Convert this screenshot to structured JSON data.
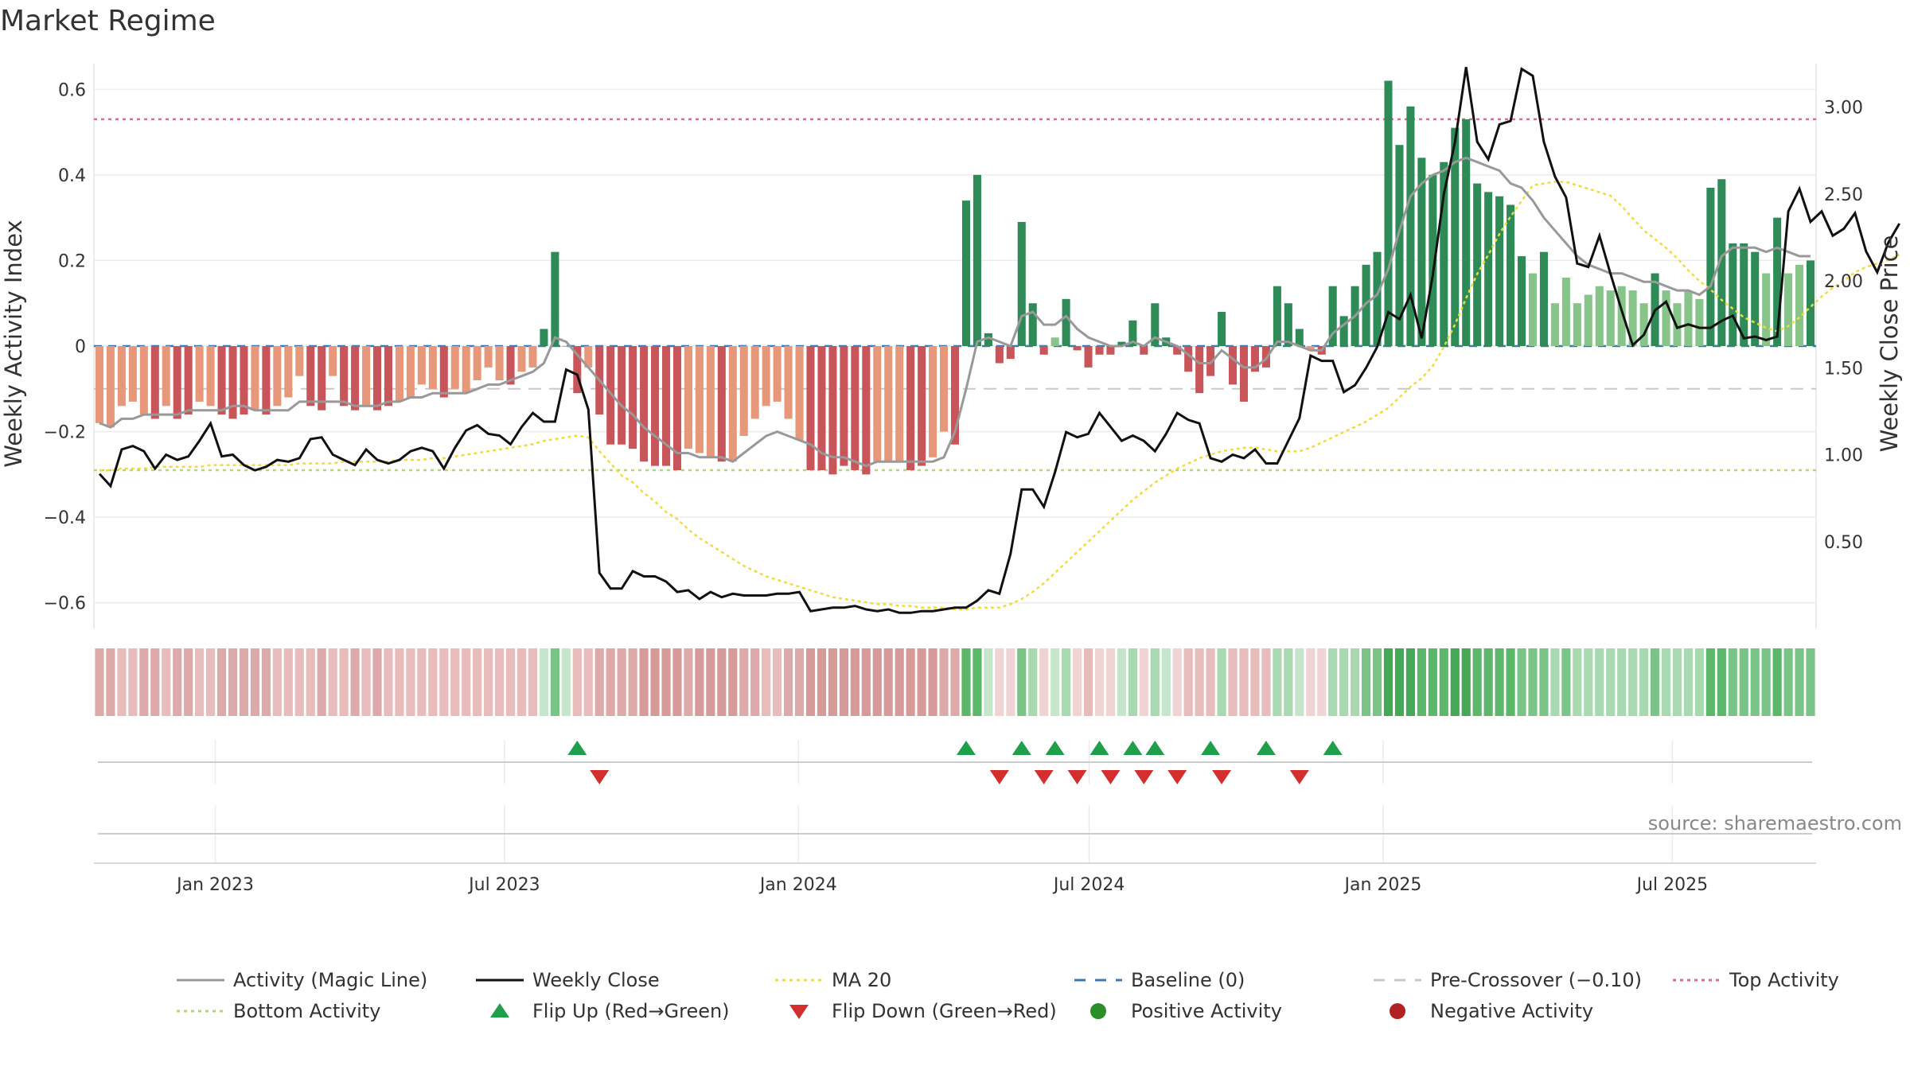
{
  "chart_data": {
    "type": "bar",
    "title": "Market Regime",
    "ylabel": "Weekly Activity Index",
    "y2label": "Weekly Close Price",
    "ylim": [
      -0.66,
      0.66
    ],
    "y2lim": [
      0.0,
      3.25
    ],
    "x_start": "2022-10-17",
    "x_end": "2025-09-29",
    "y_ticks": [
      {
        "v": 0.6,
        "label": "0.6"
      },
      {
        "v": 0.4,
        "label": "0.4"
      },
      {
        "v": 0.2,
        "label": "0.2"
      },
      {
        "v": 0.0,
        "label": "0"
      },
      {
        "v": -0.2,
        "label": "−0.2"
      },
      {
        "v": -0.4,
        "label": "−0.4"
      },
      {
        "v": -0.6,
        "label": "−0.6"
      }
    ],
    "y2_ticks": [
      {
        "v": 3.0,
        "label": "3.00"
      },
      {
        "v": 2.5,
        "label": "2.50"
      },
      {
        "v": 2.0,
        "label": "2.00"
      },
      {
        "v": 1.5,
        "label": "1.50"
      },
      {
        "v": 1.0,
        "label": "1.00"
      },
      {
        "v": 0.5,
        "label": "0.50"
      }
    ],
    "x_ticks": [
      {
        "date": "2023-01-01",
        "label": "Jan 2023"
      },
      {
        "date": "2023-07-01",
        "label": "Jul 2023"
      },
      {
        "date": "2024-01-01",
        "label": "Jan 2024"
      },
      {
        "date": "2024-07-01",
        "label": "Jul 2024"
      },
      {
        "date": "2025-01-01",
        "label": "Jan 2025"
      },
      {
        "date": "2025-07-01",
        "label": "Jul 2025"
      }
    ],
    "reference_lines": {
      "top_activity": 0.53,
      "bottom_activity": -0.29,
      "baseline": 0,
      "pre_crossover": -0.1
    },
    "activity": [
      -0.18,
      -0.19,
      -0.14,
      -0.13,
      -0.16,
      -0.17,
      -0.14,
      -0.17,
      -0.16,
      -0.13,
      -0.14,
      -0.16,
      -0.17,
      -0.16,
      -0.15,
      -0.16,
      -0.14,
      -0.12,
      -0.07,
      -0.14,
      -0.15,
      -0.07,
      -0.14,
      -0.15,
      -0.14,
      -0.15,
      -0.14,
      -0.13,
      -0.12,
      -0.09,
      -0.1,
      -0.12,
      -0.1,
      -0.11,
      -0.08,
      -0.05,
      -0.08,
      -0.09,
      -0.06,
      -0.05,
      0.04,
      0.22,
      0.0,
      -0.11,
      -0.05,
      -0.16,
      -0.23,
      -0.23,
      -0.24,
      -0.27,
      -0.28,
      -0.28,
      -0.29,
      -0.24,
      -0.25,
      -0.26,
      -0.27,
      -0.27,
      -0.21,
      -0.17,
      -0.14,
      -0.13,
      -0.17,
      -0.22,
      -0.29,
      -0.29,
      -0.3,
      -0.28,
      -0.29,
      -0.3,
      -0.27,
      -0.27,
      -0.27,
      -0.29,
      -0.28,
      -0.26,
      -0.2,
      -0.23,
      0.34,
      0.4,
      0.03,
      -0.04,
      -0.03,
      0.29,
      0.1,
      -0.02,
      0.02,
      0.11,
      -0.01,
      -0.05,
      -0.02,
      -0.02,
      0.01,
      0.06,
      -0.02,
      0.1,
      0.02,
      -0.02,
      -0.06,
      -0.11,
      -0.07,
      0.08,
      -0.09,
      -0.13,
      -0.06,
      -0.05,
      0.14,
      0.1,
      0.04,
      -0.01,
      -0.02,
      0.14,
      0.07,
      0.14,
      0.19,
      0.22,
      0.62,
      0.47,
      0.56,
      0.44,
      0.4,
      0.43,
      0.51,
      0.53,
      0.38,
      0.36,
      0.35,
      0.33,
      0.21,
      0.17,
      0.22,
      0.1,
      0.16,
      0.1,
      0.12,
      0.14,
      0.13,
      0.14,
      0.13,
      0.1,
      0.17,
      0.13,
      0.1,
      0.13,
      0.11,
      0.37,
      0.39,
      0.24,
      0.24,
      0.22,
      0.17,
      0.3,
      0.17,
      0.19,
      0.2
    ],
    "magic_line": [
      -0.18,
      -0.19,
      -0.17,
      -0.17,
      -0.16,
      -0.16,
      -0.16,
      -0.16,
      -0.15,
      -0.15,
      -0.15,
      -0.15,
      -0.14,
      -0.14,
      -0.15,
      -0.15,
      -0.15,
      -0.15,
      -0.13,
      -0.13,
      -0.13,
      -0.13,
      -0.13,
      -0.14,
      -0.14,
      -0.14,
      -0.13,
      -0.13,
      -0.12,
      -0.12,
      -0.11,
      -0.11,
      -0.11,
      -0.11,
      -0.1,
      -0.09,
      -0.09,
      -0.08,
      -0.07,
      -0.06,
      -0.04,
      0.02,
      0.01,
      -0.02,
      -0.05,
      -0.08,
      -0.11,
      -0.14,
      -0.16,
      -0.19,
      -0.21,
      -0.23,
      -0.25,
      -0.25,
      -0.26,
      -0.26,
      -0.26,
      -0.27,
      -0.25,
      -0.23,
      -0.21,
      -0.2,
      -0.21,
      -0.22,
      -0.23,
      -0.25,
      -0.26,
      -0.26,
      -0.27,
      -0.28,
      -0.27,
      -0.27,
      -0.27,
      -0.27,
      -0.27,
      -0.27,
      -0.26,
      -0.2,
      -0.1,
      0.01,
      0.02,
      0.01,
      0.0,
      0.07,
      0.08,
      0.05,
      0.05,
      0.07,
      0.04,
      0.02,
      0.01,
      0.0,
      0.0,
      0.01,
      0.0,
      0.02,
      0.01,
      0.0,
      -0.02,
      -0.04,
      -0.04,
      -0.01,
      -0.03,
      -0.05,
      -0.05,
      -0.03,
      0.01,
      0.01,
      0.0,
      -0.01,
      -0.01,
      0.03,
      0.05,
      0.07,
      0.1,
      0.12,
      0.18,
      0.27,
      0.35,
      0.38,
      0.4,
      0.41,
      0.43,
      0.44,
      0.43,
      0.42,
      0.41,
      0.38,
      0.37,
      0.34,
      0.3,
      0.27,
      0.24,
      0.21,
      0.19,
      0.18,
      0.17,
      0.17,
      0.16,
      0.15,
      0.15,
      0.14,
      0.13,
      0.13,
      0.12,
      0.14,
      0.21,
      0.23,
      0.23,
      0.23,
      0.22,
      0.23,
      0.22,
      0.21,
      0.21
    ],
    "weekly_close": [
      0.89,
      0.82,
      1.03,
      1.05,
      1.02,
      0.92,
      1.0,
      0.97,
      0.99,
      1.08,
      1.18,
      0.99,
      1.0,
      0.94,
      0.91,
      0.93,
      0.97,
      0.96,
      0.98,
      1.09,
      1.1,
      1.0,
      0.97,
      0.94,
      1.03,
      0.97,
      0.95,
      0.97,
      1.02,
      1.04,
      1.02,
      0.92,
      1.04,
      1.14,
      1.17,
      1.12,
      1.11,
      1.06,
      1.16,
      1.24,
      1.19,
      1.19,
      1.49,
      1.46,
      1.26,
      0.32,
      0.23,
      0.23,
      0.33,
      0.3,
      0.3,
      0.27,
      0.21,
      0.22,
      0.17,
      0.21,
      0.18,
      0.2,
      0.19,
      0.19,
      0.19,
      0.2,
      0.2,
      0.21,
      0.1,
      0.11,
      0.12,
      0.12,
      0.13,
      0.11,
      0.1,
      0.11,
      0.09,
      0.09,
      0.1,
      0.1,
      0.11,
      0.12,
      0.12,
      0.16,
      0.22,
      0.2,
      0.43,
      0.8,
      0.8,
      0.7,
      0.9,
      1.13,
      1.1,
      1.12,
      1.24,
      1.16,
      1.08,
      1.11,
      1.08,
      1.02,
      1.12,
      1.24,
      1.2,
      1.18,
      0.98,
      0.96,
      1.0,
      0.98,
      1.03,
      0.95,
      0.95,
      1.08,
      1.21,
      1.57,
      1.54,
      1.54,
      1.36,
      1.4,
      1.5,
      1.62,
      1.82,
      1.78,
      1.92,
      1.67,
      2.03,
      2.5,
      2.8,
      3.23,
      2.8,
      2.7,
      2.9,
      2.92,
      3.22,
      3.18,
      2.8,
      2.6,
      2.48,
      2.1,
      2.08,
      2.26,
      2.04,
      1.83,
      1.63,
      1.69,
      1.83,
      1.88,
      1.73,
      1.75,
      1.73,
      1.73,
      1.77,
      1.8,
      1.67,
      1.68,
      1.66,
      1.68,
      2.4,
      2.53,
      2.34,
      2.4,
      2.26,
      2.3,
      2.39,
      2.17,
      2.05,
      2.22,
      2.33
    ],
    "ma20": [
      0.91,
      0.91,
      0.92,
      0.92,
      0.92,
      0.93,
      0.93,
      0.93,
      0.93,
      0.93,
      0.94,
      0.94,
      0.94,
      0.94,
      0.94,
      0.94,
      0.94,
      0.94,
      0.95,
      0.95,
      0.95,
      0.95,
      0.96,
      0.96,
      0.96,
      0.96,
      0.96,
      0.97,
      0.97,
      0.97,
      0.98,
      0.98,
      0.99,
      1.0,
      1.01,
      1.02,
      1.03,
      1.04,
      1.05,
      1.06,
      1.08,
      1.09,
      1.1,
      1.11,
      1.1,
      1.02,
      0.95,
      0.88,
      0.84,
      0.78,
      0.73,
      0.67,
      0.63,
      0.57,
      0.52,
      0.48,
      0.44,
      0.4,
      0.36,
      0.33,
      0.3,
      0.28,
      0.26,
      0.24,
      0.22,
      0.2,
      0.18,
      0.17,
      0.16,
      0.15,
      0.14,
      0.14,
      0.13,
      0.13,
      0.12,
      0.12,
      0.12,
      0.11,
      0.11,
      0.12,
      0.12,
      0.12,
      0.14,
      0.17,
      0.21,
      0.26,
      0.32,
      0.38,
      0.44,
      0.5,
      0.56,
      0.62,
      0.68,
      0.74,
      0.79,
      0.84,
      0.88,
      0.92,
      0.95,
      0.98,
      1.0,
      1.02,
      1.03,
      1.04,
      1.04,
      1.03,
      1.02,
      1.02,
      1.02,
      1.04,
      1.07,
      1.1,
      1.13,
      1.16,
      1.19,
      1.23,
      1.27,
      1.33,
      1.39,
      1.44,
      1.51,
      1.62,
      1.75,
      1.9,
      2.04,
      2.15,
      2.27,
      2.37,
      2.46,
      2.55,
      2.56,
      2.57,
      2.57,
      2.55,
      2.53,
      2.51,
      2.49,
      2.43,
      2.36,
      2.29,
      2.24,
      2.19,
      2.13,
      2.06,
      2.0,
      1.95,
      1.89,
      1.84,
      1.79,
      1.76,
      1.73,
      1.71,
      1.74,
      1.79,
      1.85,
      1.91,
      1.96,
      2.0,
      2.05,
      2.08,
      2.1,
      2.12,
      2.15
    ],
    "flip_up_idx": [
      43,
      78,
      83,
      86,
      90,
      93,
      95,
      100,
      105,
      111
    ],
    "flip_down_idx": [
      45,
      81,
      85,
      88,
      91,
      94,
      97,
      101,
      108
    ],
    "regime_colors": {
      "deep_green": "#44a857",
      "mid_green": "#5cb76a",
      "green": "#79c486",
      "light_green": "#a9d9b0",
      "pale_green": "#c6e6cb",
      "pale_red": "#f0d4d4",
      "light_red": "#e9bcbc",
      "red": "#deaaa9",
      "dark_red": "#d69a98"
    },
    "bar_colors": {
      "strong_pos": "#2e8b57",
      "weak_pos": "#86c489",
      "strong_neg": "#c8555a",
      "weak_neg": "#e8987a"
    },
    "line_colors": {
      "magic_line": "#999999",
      "weekly_close": "#111111",
      "ma20": "#f0dc3c",
      "baseline": "#3a78b6",
      "pre_crossover": "#c8c8c8",
      "top_activity": "#e06b8b",
      "bottom_activity": "#b5d67a",
      "flip_up": "#1f9e4b",
      "flip_down": "#d32f2f",
      "positive": "#2a8f2a",
      "negative": "#b22222"
    },
    "source": "source: sharemaestro.com",
    "legend": [
      {
        "label": "Activity (Magic Line)",
        "marker": "line",
        "color": "#999999"
      },
      {
        "label": "Weekly Close",
        "marker": "line",
        "color": "#111111"
      },
      {
        "label": "MA 20",
        "marker": "dotted",
        "color": "#f0dc3c"
      },
      {
        "label": "Baseline (0)",
        "marker": "dashed",
        "color": "#3a78b6"
      },
      {
        "label": "Pre-Crossover (−0.10)",
        "marker": "dashed",
        "color": "#c8c8c8"
      },
      {
        "label": "Top Activity",
        "marker": "dotted",
        "color": "#e06b8b"
      },
      {
        "label": "Bottom Activity",
        "marker": "dotted",
        "color": "#b5d67a"
      },
      {
        "label": "Flip Up (Red→Green)",
        "marker": "triangle-up",
        "color": "#1f9e4b"
      },
      {
        "label": "Flip Down (Green→Red)",
        "marker": "triangle-down",
        "color": "#d32f2f"
      },
      {
        "label": "Positive Activity",
        "marker": "circle",
        "color": "#2a8f2a"
      },
      {
        "label": "Negative Activity",
        "marker": "circle",
        "color": "#b22222"
      }
    ]
  }
}
